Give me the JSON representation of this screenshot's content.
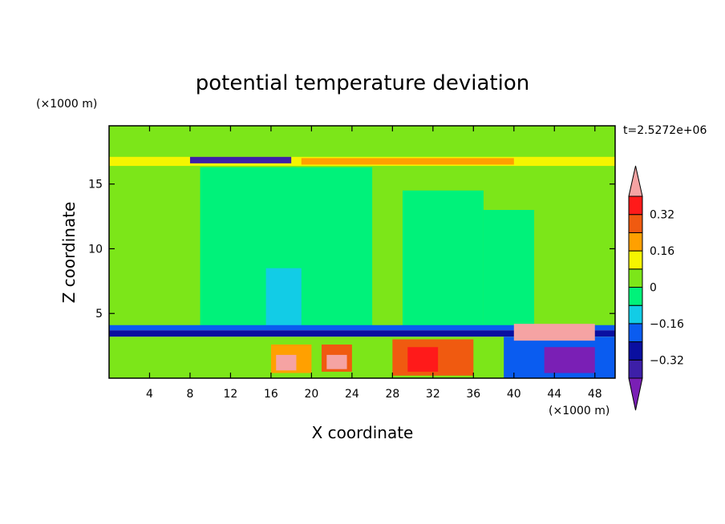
{
  "chart_data": {
    "type": "heatmap",
    "title": "potential temperature deviation",
    "xlabel": "X coordinate",
    "ylabel": "Z coordinate",
    "x_unit": "(×1000 m)",
    "y_unit": "(×1000 m)",
    "time_label": "t=2.5272e+06",
    "xlim": [
      0,
      50
    ],
    "ylim": [
      0,
      19.5
    ],
    "x_ticks": [
      4,
      8,
      12,
      16,
      20,
      24,
      28,
      32,
      36,
      40,
      44,
      48
    ],
    "y_ticks": [
      5,
      10,
      15
    ],
    "colorbar": {
      "levels": [
        -0.4,
        -0.32,
        -0.24,
        -0.16,
        -0.08,
        0,
        0.08,
        0.16,
        0.24,
        0.32,
        0.4
      ],
      "tick_labels": [
        "0.32",
        "0.16",
        "0",
        "−0.16",
        "−0.32"
      ],
      "tick_values": [
        0.32,
        0.16,
        0,
        -0.16,
        -0.32
      ],
      "colors": [
        "#7a1fb5",
        "#3d1fa8",
        "#0a0fa0",
        "#0a5cf0",
        "#12cce6",
        "#00f27a",
        "#7ce619",
        "#f5f500",
        "#ffa000",
        "#f05a10",
        "#ff1a1a",
        "#f5a3a3"
      ],
      "extend": "both"
    },
    "regions": [
      {
        "x": [
          0,
          50
        ],
        "z": [
          4,
          19.5
        ],
        "value": 0.04
      },
      {
        "x": [
          9,
          18.5
        ],
        "z": [
          4,
          16.3
        ],
        "value": -0.04
      },
      {
        "x": [
          18,
          26
        ],
        "z": [
          4,
          16.3
        ],
        "value": -0.04
      },
      {
        "x": [
          29,
          37
        ],
        "z": [
          4,
          14.5
        ],
        "value": -0.04
      },
      {
        "x": [
          37,
          42
        ],
        "z": [
          4,
          13
        ],
        "value": -0.04
      },
      {
        "x": [
          15.5,
          19
        ],
        "z": [
          4,
          8.5
        ],
        "value": -0.12
      },
      {
        "x": [
          0,
          50
        ],
        "z": [
          16.4,
          17.1
        ],
        "value": 0.12
      },
      {
        "x": [
          19,
          40
        ],
        "z": [
          16.5,
          17
        ],
        "value": 0.2
      },
      {
        "x": [
          8,
          18
        ],
        "z": [
          16.6,
          17.1
        ],
        "value": -0.36
      },
      {
        "x": [
          0,
          50
        ],
        "z": [
          3.7,
          4.1
        ],
        "value": -0.2
      },
      {
        "x": [
          0,
          50
        ],
        "z": [
          3.2,
          3.7
        ],
        "value": -0.28
      },
      {
        "x": [
          0,
          50
        ],
        "z": [
          0,
          3.2
        ],
        "value": 0.04
      },
      {
        "x": [
          16,
          20
        ],
        "z": [
          0.4,
          2.6
        ],
        "value": 0.2
      },
      {
        "x": [
          16.5,
          18.5
        ],
        "z": [
          0.6,
          1.8
        ],
        "value": 0.44
      },
      {
        "x": [
          21,
          24
        ],
        "z": [
          0.5,
          2.6
        ],
        "value": 0.28
      },
      {
        "x": [
          21.5,
          23.5
        ],
        "z": [
          0.7,
          1.8
        ],
        "value": 0.44
      },
      {
        "x": [
          28,
          36
        ],
        "z": [
          0.2,
          3
        ],
        "value": 0.28
      },
      {
        "x": [
          29.5,
          32.5
        ],
        "z": [
          0.5,
          2.4
        ],
        "value": 0.36
      },
      {
        "x": [
          39,
          50
        ],
        "z": [
          0,
          3.2
        ],
        "value": -0.2
      },
      {
        "x": [
          43,
          48
        ],
        "z": [
          0.4,
          2.4
        ],
        "value": -0.44
      },
      {
        "x": [
          40,
          48
        ],
        "z": [
          2.9,
          4.2
        ],
        "value": 0.44
      }
    ]
  }
}
